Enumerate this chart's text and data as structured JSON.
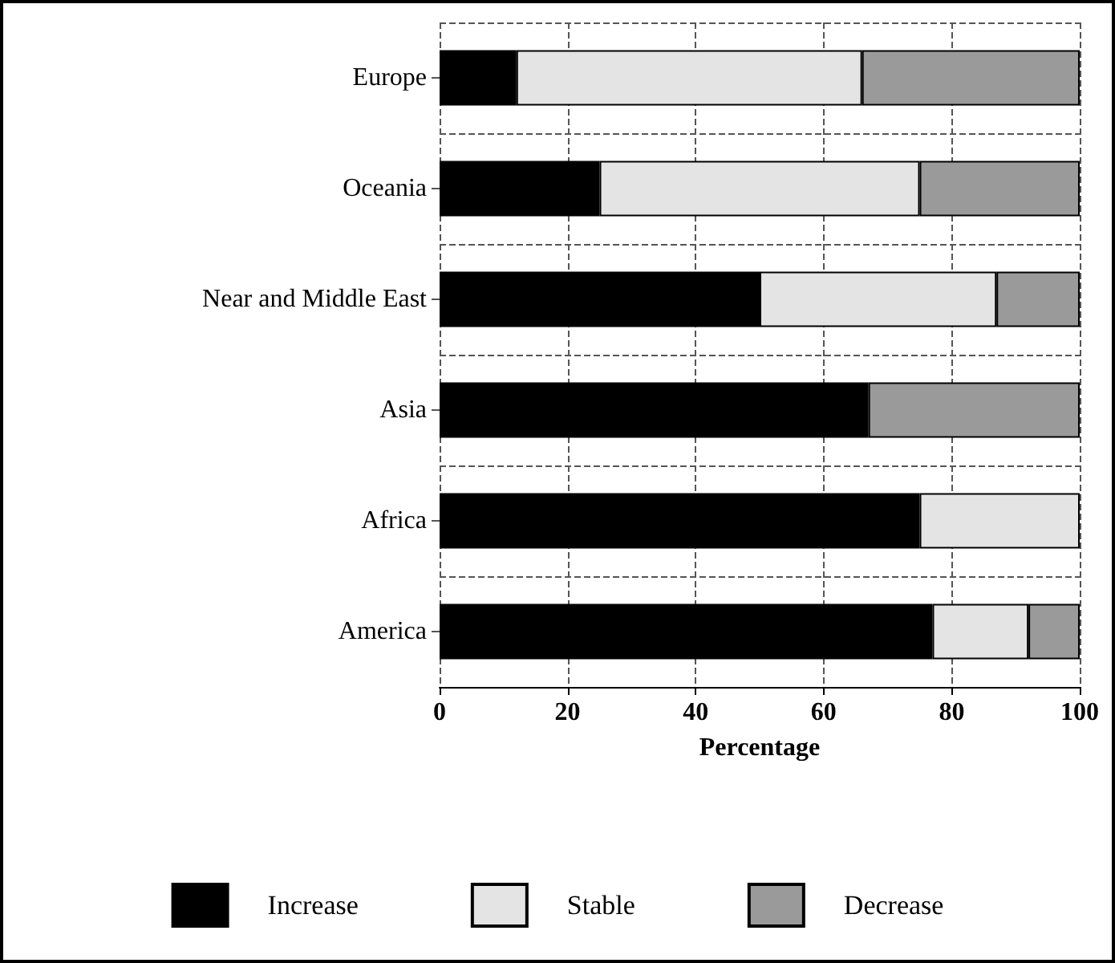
{
  "chart_data": {
    "type": "bar",
    "orientation": "horizontal",
    "stacked": true,
    "categories": [
      "Europe",
      "Oceania",
      "Near and Middle East",
      "Asia",
      "Africa",
      "America"
    ],
    "series": [
      {
        "name": "Increase",
        "color": "#000000",
        "values": [
          12,
          25,
          50,
          67,
          75,
          77
        ]
      },
      {
        "name": "Stable",
        "color": "#e4e4e4",
        "values": [
          54,
          50,
          37,
          0,
          25,
          15
        ]
      },
      {
        "name": "Decrease",
        "color": "#9a9a9a",
        "values": [
          34,
          25,
          13,
          33,
          0,
          8
        ]
      }
    ],
    "xlabel": "Percentage",
    "xlim": [
      0,
      100
    ],
    "xticks": [
      0,
      20,
      40,
      60,
      80,
      100
    ],
    "grid": true,
    "legend": "bottom"
  }
}
